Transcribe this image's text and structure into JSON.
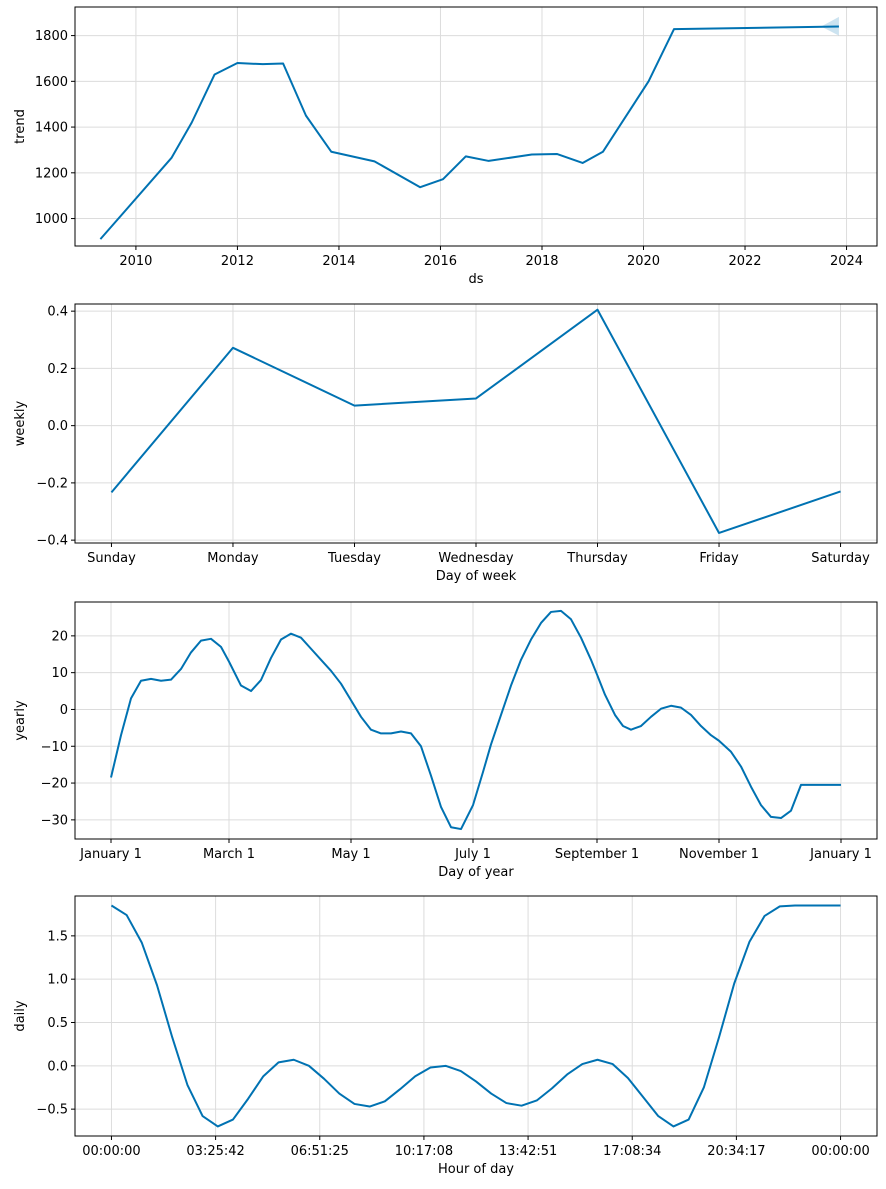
{
  "colors": {
    "line": "#0072b2",
    "band": "#0072b2",
    "grid": "#dcdcdc"
  },
  "chart_data": [
    {
      "name": "trend",
      "type": "line",
      "xlabel": "ds",
      "ylabel": "trend",
      "xlim": [
        2008.8,
        2024.6
      ],
      "ylim": [
        880,
        1925
      ],
      "xticks": [
        2010,
        2012,
        2014,
        2016,
        2018,
        2020,
        2022,
        2024
      ],
      "xtick_labels": [
        "2010",
        "2012",
        "2014",
        "2016",
        "2018",
        "2020",
        "2022",
        "2024"
      ],
      "yticks": [
        1000,
        1200,
        1400,
        1600,
        1800
      ],
      "ytick_labels": [
        "1000",
        "1200",
        "1400",
        "1600",
        "1800"
      ],
      "x": [
        2009.3,
        2010.7,
        2011.1,
        2011.55,
        2012.0,
        2012.5,
        2012.9,
        2013.35,
        2013.85,
        2014.7,
        2015.6,
        2016.05,
        2016.5,
        2016.95,
        2017.8,
        2018.3,
        2018.8,
        2019.2,
        2020.1,
        2020.6,
        2023.85
      ],
      "values": [
        910,
        1265,
        1420,
        1630,
        1680,
        1675,
        1678,
        1450,
        1292,
        1250,
        1137,
        1172,
        1272,
        1252,
        1280,
        1282,
        1243,
        1292,
        1600,
        1828,
        1840
      ],
      "uncertainty": {
        "x": [
          2023.5,
          2023.85
        ],
        "lower": [
          1840,
          1800
        ],
        "upper": [
          1840,
          1882
        ]
      }
    },
    {
      "name": "weekly",
      "type": "line",
      "xlabel": "Day of week",
      "ylabel": "weekly",
      "xlim": [
        -0.3,
        6.3
      ],
      "ylim": [
        -0.41,
        0.425
      ],
      "xticks": [
        0,
        1,
        2,
        3,
        4,
        5,
        6
      ],
      "xtick_labels": [
        "Sunday",
        "Monday",
        "Tuesday",
        "Wednesday",
        "Thursday",
        "Friday",
        "Saturday"
      ],
      "yticks": [
        -0.4,
        -0.2,
        0.0,
        0.2,
        0.4
      ],
      "ytick_labels": [
        "−0.4",
        "−0.2",
        "0.0",
        "0.2",
        "0.4"
      ],
      "x": [
        0,
        1,
        2,
        3,
        4,
        5,
        6
      ],
      "values": [
        -0.233,
        0.272,
        0.07,
        0.095,
        0.405,
        -0.375,
        -0.23
      ]
    },
    {
      "name": "yearly",
      "type": "line",
      "xlabel": "Day of year",
      "ylabel": "yearly",
      "xlim": [
        -18,
        383
      ],
      "ylim": [
        -35.2,
        29.2
      ],
      "xticks": [
        0,
        59,
        120,
        181,
        243,
        304,
        365
      ],
      "xtick_labels": [
        "January 1",
        "March 1",
        "May 1",
        "July 1",
        "September 1",
        "November 1",
        "January 1"
      ],
      "yticks": [
        -30,
        -20,
        -10,
        0,
        10,
        20
      ],
      "ytick_labels": [
        "−30",
        "−20",
        "−10",
        "0",
        "10",
        "20"
      ],
      "x": [
        0,
        5,
        10,
        15,
        20,
        25,
        30,
        35,
        40,
        45,
        50,
        55,
        59,
        65,
        70,
        75,
        80,
        85,
        90,
        95,
        100,
        105,
        110,
        115,
        120,
        125,
        130,
        135,
        140,
        145,
        150,
        155,
        160,
        165,
        170,
        175,
        181,
        186,
        190,
        195,
        200,
        205,
        210,
        215,
        220,
        225,
        230,
        235,
        240,
        243,
        247,
        252,
        256,
        260,
        265,
        270,
        275,
        280,
        285,
        290,
        295,
        300,
        304,
        310,
        315,
        320,
        325,
        330,
        335,
        340,
        345,
        350,
        355,
        360,
        365
      ],
      "values": [
        -18.5,
        -7,
        3,
        7.8,
        8.3,
        7.8,
        8.1,
        11,
        15.5,
        18.7,
        19.2,
        17,
        13,
        6.5,
        5,
        8,
        14,
        19,
        20.6,
        19.5,
        16.5,
        13.5,
        10.5,
        7,
        2.5,
        -2,
        -5.5,
        -6.5,
        -6.5,
        -6,
        -6.5,
        -10,
        -18,
        -26.5,
        -32,
        -32.5,
        -26,
        -17,
        -9.5,
        -1.5,
        6.5,
        13.5,
        19,
        23.5,
        26.5,
        26.8,
        24.5,
        19.5,
        13.5,
        9.5,
        4,
        -1.5,
        -4.5,
        -5.5,
        -4.5,
        -2,
        0.2,
        1,
        0.5,
        -1.5,
        -4.5,
        -7,
        -8.5,
        -11.5,
        -15.5,
        -21,
        -26,
        -29.2,
        -29.5,
        -27.5,
        -20.5,
        -20.5,
        -20.5,
        -20.5,
        -20.5
      ]
    },
    {
      "name": "daily",
      "type": "line",
      "xlabel": "Hour of day",
      "ylabel": "daily",
      "xlim": [
        -1.2,
        25.2
      ],
      "ylim": [
        -0.81,
        1.96
      ],
      "xticks": [
        0,
        3.4283,
        6.8569,
        10.2856,
        13.7142,
        17.1428,
        20.5714,
        24
      ],
      "xtick_labels": [
        "00:00:00",
        "03:25:42",
        "06:51:25",
        "10:17:08",
        "13:42:51",
        "17:08:34",
        "20:34:17",
        "00:00:00"
      ],
      "yticks": [
        -0.5,
        0.0,
        0.5,
        1.0,
        1.5
      ],
      "ytick_labels": [
        "−0.5",
        "0.0",
        "0.5",
        "1.0",
        "1.5"
      ],
      "x": [
        0,
        0.5,
        1.0,
        1.5,
        2.0,
        2.5,
        3.0,
        3.5,
        4.0,
        4.5,
        5.0,
        5.5,
        6.0,
        6.5,
        7.0,
        7.5,
        8.0,
        8.5,
        9.0,
        9.5,
        10.0,
        10.5,
        11.0,
        11.5,
        12.0,
        12.5,
        13.0,
        13.5,
        14.0,
        14.5,
        15.0,
        15.5,
        16.0,
        16.5,
        17.0,
        17.5,
        18.0,
        18.5,
        19.0,
        19.5,
        20.0,
        20.5,
        21.0,
        21.5,
        22.0,
        22.5,
        23.0,
        23.5,
        24.0
      ],
      "values": [
        1.85,
        1.74,
        1.42,
        0.93,
        0.33,
        -0.22,
        -0.58,
        -0.7,
        -0.62,
        -0.38,
        -0.12,
        0.04,
        0.07,
        0.0,
        -0.15,
        -0.32,
        -0.44,
        -0.47,
        -0.41,
        -0.27,
        -0.12,
        -0.02,
        0.0,
        -0.06,
        -0.18,
        -0.32,
        -0.43,
        -0.46,
        -0.4,
        -0.26,
        -0.1,
        0.02,
        0.07,
        0.02,
        -0.14,
        -0.36,
        -0.58,
        -0.7,
        -0.62,
        -0.25,
        0.33,
        0.95,
        1.43,
        1.73,
        1.84,
        1.85,
        1.85,
        1.85,
        1.85
      ]
    }
  ]
}
